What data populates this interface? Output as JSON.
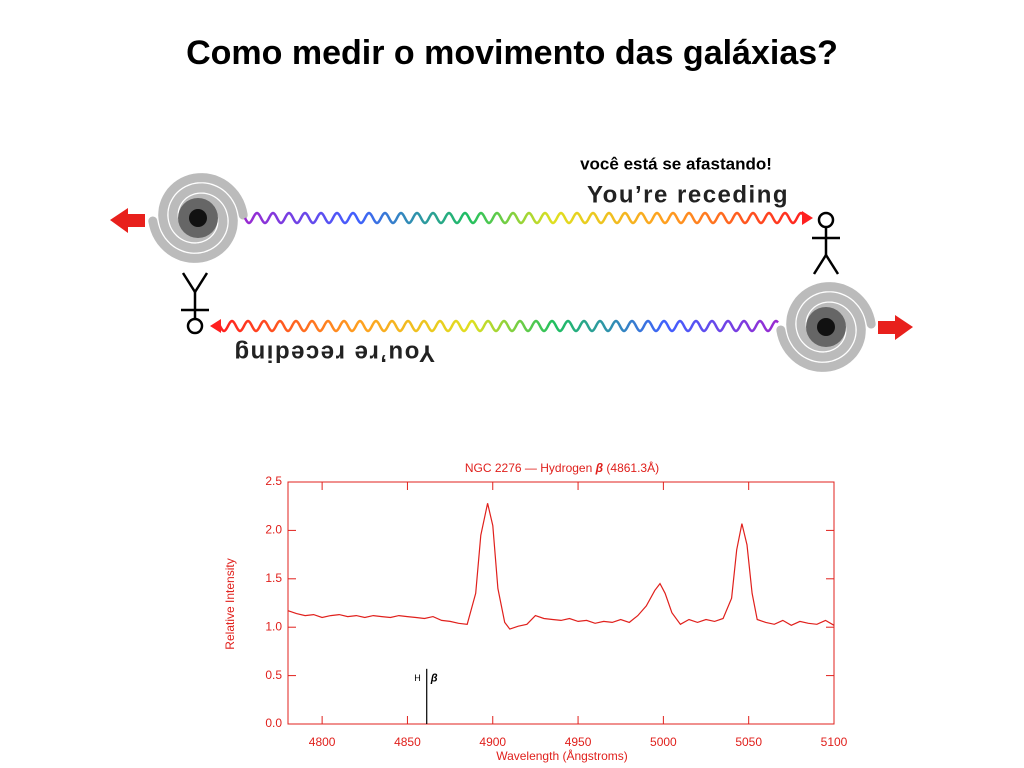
{
  "title": "Como medir  o movimento das galáxias?",
  "diagram": {
    "caption": "você está se afastando!",
    "top_label": "You’re receding",
    "bottom_label": "You’re receding"
  },
  "chart_data": {
    "type": "line",
    "title": [
      "NGC 2276 — Hydrogen ",
      "β",
      " (4861.3Å)"
    ],
    "x_label": "Wavelength (Ångstroms)",
    "y_label": "Relative Intensity",
    "color": "#e0201c",
    "xlim": [
      4780,
      5100
    ],
    "ylim": [
      0,
      2.5
    ],
    "xticks": [
      4800,
      4850,
      4900,
      4950,
      5000,
      5050,
      5100
    ],
    "yticks": [
      {
        "value": 0,
        "label": "0.0"
      },
      0.5,
      {
        "value": 1,
        "label": "1.0"
      },
      1.5,
      {
        "value": 2,
        "label": "2.0"
      },
      2.5
    ],
    "annotation": {
      "label": "H",
      "symbol": "β",
      "x": 4861.3,
      "y": [
        0,
        0.57
      ]
    },
    "series": [
      {
        "name": "NGC 2276",
        "color": "#e0201c",
        "x": [
          4780,
          4785,
          4790,
          4795,
          4800,
          4805,
          4810,
          4815,
          4820,
          4825,
          4830,
          4835,
          4840,
          4845,
          4850,
          4855,
          4860,
          4865,
          4870,
          4875,
          4880,
          4885,
          4890,
          4893,
          4897,
          4900,
          4903,
          4907,
          4910,
          4915,
          4920,
          4925,
          4930,
          4935,
          4940,
          4945,
          4950,
          4955,
          4960,
          4965,
          4970,
          4975,
          4980,
          4985,
          4990,
          4995,
          4998,
          5001,
          5005,
          5010,
          5015,
          5020,
          5025,
          5030,
          5035,
          5040,
          5043,
          5046,
          5049,
          5052,
          5055,
          5060,
          5065,
          5070,
          5075,
          5080,
          5085,
          5090,
          5095,
          5100
        ],
        "values": [
          1.17,
          1.14,
          1.12,
          1.13,
          1.1,
          1.12,
          1.13,
          1.11,
          1.12,
          1.1,
          1.12,
          1.11,
          1.1,
          1.12,
          1.11,
          1.1,
          1.09,
          1.11,
          1.07,
          1.06,
          1.04,
          1.03,
          1.35,
          1.95,
          2.28,
          2.05,
          1.4,
          1.05,
          0.98,
          1.01,
          1.03,
          1.12,
          1.09,
          1.08,
          1.07,
          1.09,
          1.06,
          1.07,
          1.04,
          1.06,
          1.05,
          1.08,
          1.05,
          1.12,
          1.22,
          1.38,
          1.45,
          1.35,
          1.15,
          1.03,
          1.08,
          1.05,
          1.08,
          1.06,
          1.09,
          1.3,
          1.8,
          2.07,
          1.85,
          1.35,
          1.08,
          1.05,
          1.03,
          1.07,
          1.02,
          1.06,
          1.04,
          1.03,
          1.07,
          1.02
        ]
      }
    ]
  }
}
